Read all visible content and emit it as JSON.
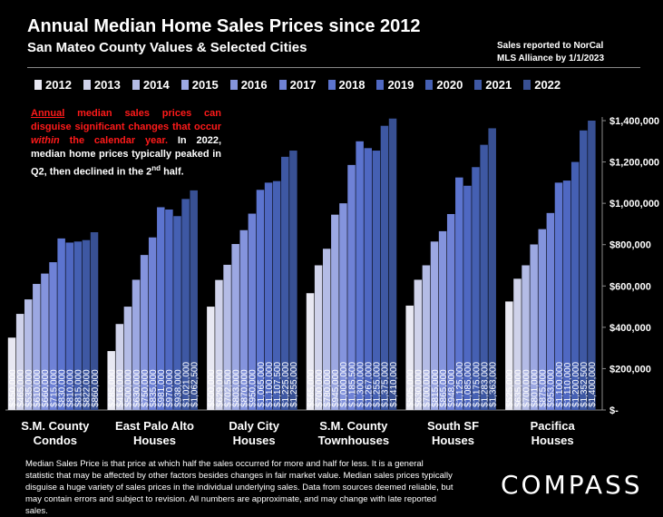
{
  "header": {
    "title": "Annual Median Home Sales Prices since 2012",
    "subtitle": "San Mateo County Values & Selected Cities",
    "source_line1": "Sales reported to NorCal",
    "source_line2": "MLS Alliance by 1/1/2023"
  },
  "annotation": {
    "part1": "Annual",
    "part2": " median sales prices can disguise significant changes that occur ",
    "part3": "within",
    "part4": " the calendar year.",
    "part5": " In 2022, median home prices typically peaked in Q2, then declined in the 2",
    "part5_sup": "nd",
    "part6": " half."
  },
  "footer": {
    "text": "Median Sales Price is that price at which half the sales occurred for more and half for less. It is a general statistic that may be affected by other factors besides changes in fair market value. Median sales prices typically disguise a huge variety of sales prices in the individual underlying sales. Data from sources deemed reliable, but may contain errors and subject to revision.  All numbers are approximate, and may change with late reported sales."
  },
  "logo": {
    "text": "COMPASS"
  },
  "colors": {
    "background": "#000000",
    "annotation_red": "#ff1a1a",
    "year_colors": [
      "#e8e8f2",
      "#cfd2ea",
      "#b4bce6",
      "#9ca8e2",
      "#8494dd",
      "#6f82d6",
      "#5c74cf",
      "#4f68c2",
      "#4560b3",
      "#3e58a3",
      "#385093"
    ]
  },
  "chart_data": {
    "type": "bar",
    "title": "Annual Median Home Sales Prices since 2012",
    "subtitle": "San Mateo County Values & Selected Cities",
    "legend_position": "top",
    "ylim": [
      0,
      1400000
    ],
    "yticks": [
      0,
      200000,
      400000,
      600000,
      800000,
      1000000,
      1200000,
      1400000
    ],
    "ytick_labels": [
      "$-",
      "$200,000",
      "$400,000",
      "$600,000",
      "$800,000",
      "$1,000,000",
      "$1,200,000",
      "$1,400,000"
    ],
    "y_axis_side": "right",
    "grid": false,
    "series_names": [
      "2012",
      "2013",
      "2014",
      "2015",
      "2016",
      "2017",
      "2018",
      "2019",
      "2020",
      "2021",
      "2022"
    ],
    "groups": [
      {
        "label_line1": "S.M. County",
        "label_line2": "Condos",
        "values": [
          350000,
          465000,
          535000,
          610000,
          660000,
          715000,
          830000,
          810000,
          815000,
          822000,
          860000
        ],
        "labels": [
          "$350,000",
          "$465,000",
          "$535,000",
          "$610,000",
          "$660,000",
          "$715,000",
          "$830,000",
          "$810,000",
          "$815,000",
          "$822,000",
          "$860,000"
        ]
      },
      {
        "label_line1": "East Palo Alto",
        "label_line2": "Houses",
        "values": [
          285000,
          416000,
          500000,
          630000,
          750000,
          835000,
          981000,
          970000,
          938000,
          1021000,
          1062500
        ],
        "labels": [
          "$285,000",
          "$416,000",
          "$500,000",
          "$630,000",
          "$750,000",
          "$835,000",
          "$981,000",
          "$970,000",
          "$938,000",
          "$1,021,000",
          "$1,062,500"
        ]
      },
      {
        "label_line1": "Daly City",
        "label_line2": "Houses",
        "values": [
          500000,
          629000,
          702500,
          803000,
          870000,
          950000,
          1065000,
          1100000,
          1107500,
          1225000,
          1255000
        ],
        "labels": [
          "$500,000",
          "$629,000",
          "$702,500",
          "$803,000",
          "$870,000",
          "$950,000",
          "$1,065,000",
          "$1,100,000",
          "$1,107,500",
          "$1,225,000",
          "$1,255,000"
        ]
      },
      {
        "label_line1": "S.M. County",
        "label_line2": "Townhouses",
        "values": [
          565000,
          700000,
          780000,
          945000,
          1000000,
          1185500,
          1300000,
          1267000,
          1255000,
          1375000,
          1410000
        ],
        "labels": [
          "$565,000",
          "$700,000",
          "$780,000",
          "$945,000",
          "$1,000,000",
          "$1,185,500",
          "$1,300,000",
          "$1,267,000",
          "$1,255,000",
          "$1,375,000",
          "$1,410,000"
        ]
      },
      {
        "label_line1": "South SF",
        "label_line2": "Houses",
        "values": [
          505000,
          630000,
          700000,
          815000,
          865000,
          948000,
          1125000,
          1085000,
          1175000,
          1283000,
          1363000
        ],
        "labels": [
          "$505,000",
          "$630,000",
          "$700,000",
          "$815,000",
          "$865,000",
          "$948,000",
          "$1,125,000",
          "$1,085,000",
          "$1,175,000",
          "$1,283,000",
          "$1,363,000"
        ]
      },
      {
        "label_line1": "Pacifica",
        "label_line2": "Houses",
        "values": [
          525000,
          635000,
          700000,
          801000,
          875000,
          953000,
          1100000,
          1110000,
          1200000,
          1352500,
          1400000
        ],
        "labels": [
          "$525,000",
          "$635,000",
          "$700,000",
          "$801,000",
          "$875,000",
          "$953,000",
          "$1,100,000",
          "$1,110,000",
          "$1,200,000",
          "$1,352,500",
          "$1,400,000"
        ]
      }
    ]
  }
}
